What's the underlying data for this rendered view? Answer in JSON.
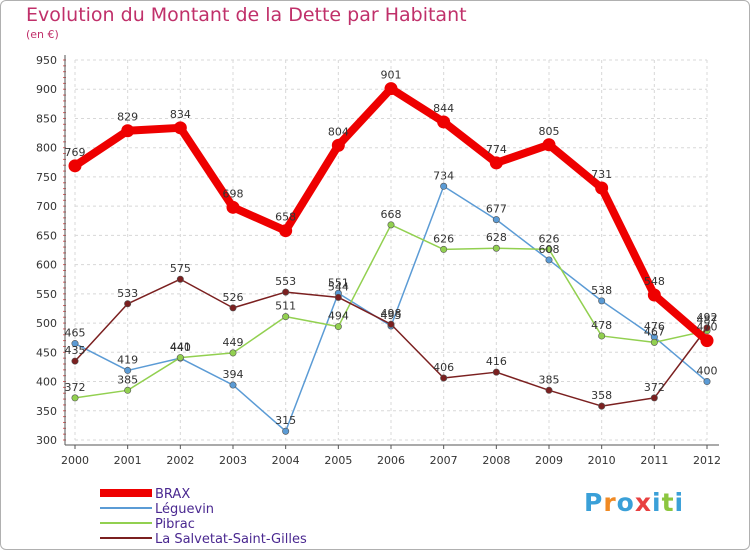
{
  "title": "Evolution du Montant de la Dette par Habitant",
  "subtitle": "(en €)",
  "logo": {
    "text": "Proxiti",
    "colors": [
      "#3aa0d8",
      "#f08a24",
      "#3aa0d8",
      "#e84040",
      "#3aa0d8",
      "#8cc63f",
      "#3aa0d8"
    ]
  },
  "chart_data": {
    "type": "line",
    "title": "Evolution du Montant de la Dette par Habitant",
    "subtitle": "(en €)",
    "xlabel": "",
    "ylabel": "",
    "x": [
      "2000",
      "2001",
      "2002",
      "2003",
      "2004",
      "2005",
      "2006",
      "2007",
      "2008",
      "2009",
      "2010",
      "2011",
      "2012"
    ],
    "ylim": [
      300,
      950
    ],
    "yticks": [
      300,
      350,
      400,
      450,
      500,
      550,
      600,
      650,
      700,
      750,
      800,
      850,
      900,
      950
    ],
    "grid": true,
    "legend_position": "bottom-left",
    "series": [
      {
        "name": "BRAX",
        "color": "#ee0000",
        "values": [
          769,
          829,
          834,
          698,
          658,
          804,
          901,
          844,
          774,
          805,
          731,
          548,
          470
        ]
      },
      {
        "name": "Léguevin",
        "color": "#5b9bd5",
        "values": [
          465,
          419,
          440,
          394,
          315,
          551,
          495,
          734,
          677,
          608,
          538,
          476,
          400
        ]
      },
      {
        "name": "Pibrac",
        "color": "#92d050",
        "values": [
          372,
          385,
          441,
          449,
          511,
          494,
          668,
          626,
          628,
          626,
          478,
          467,
          487
        ]
      },
      {
        "name": "La Salvetat-Saint-Gilles",
        "color": "#7b2020",
        "values": [
          435,
          533,
          575,
          526,
          553,
          544,
          498,
          406,
          416,
          385,
          358,
          372,
          492
        ]
      }
    ]
  }
}
